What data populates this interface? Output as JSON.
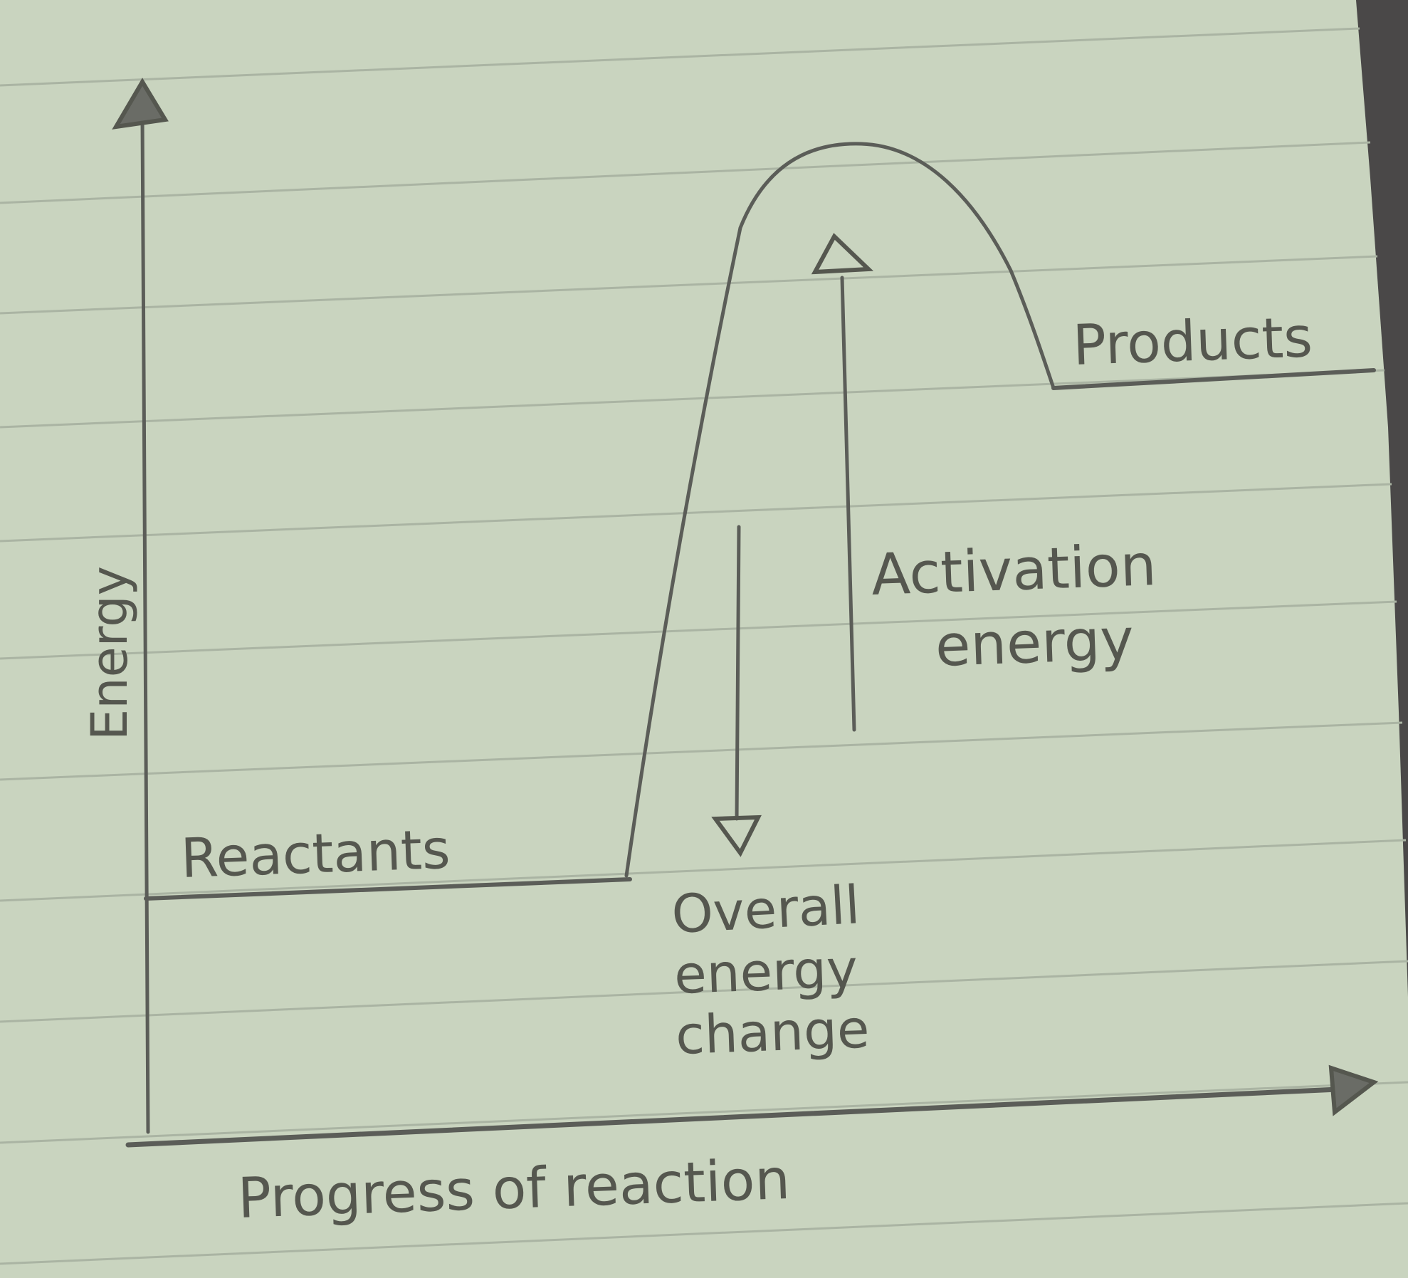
{
  "diagram": {
    "y_axis_label": "Energy",
    "x_axis_label": "Progress of reaction",
    "reactants_label": "Reactants",
    "products_label": "Products",
    "activation_label_line1": "Activation",
    "activation_label_line2": "energy",
    "overall_label_line1": "Overall",
    "overall_label_line2": "energy",
    "overall_label_line3": "change"
  },
  "colors": {
    "paper": "#c9d4bf",
    "ruled_line": "#aab4a3",
    "pencil": "#5b5d58",
    "background": "#3a3a3a"
  }
}
